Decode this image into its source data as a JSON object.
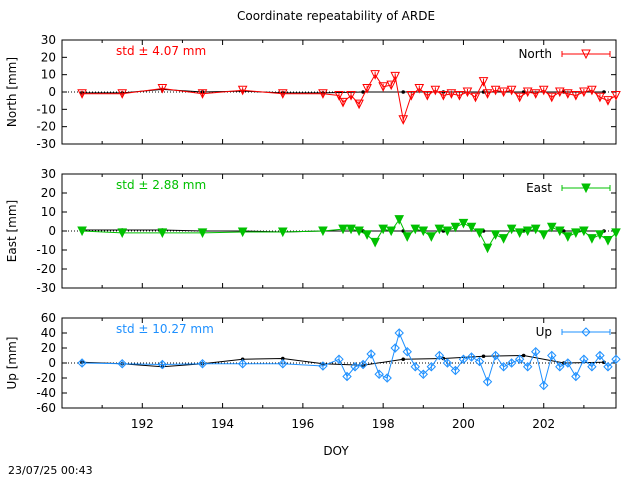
{
  "title": "Coordinate repeatability of ARDE",
  "timestamp": "23/07/25 00:43",
  "x_label": "DOY",
  "x_ticks": [
    "192",
    "194",
    "196",
    "198",
    "200",
    "202"
  ],
  "chart_data": [
    {
      "type": "line",
      "panel": "north",
      "ylabel": "North [mm]",
      "ylim": [
        -30,
        30
      ],
      "yticks": [
        "30",
        "20",
        "10",
        "0",
        "-10",
        "-20",
        "-30"
      ],
      "legend": "North",
      "std_label": "std ± 4.07 mm",
      "color": "#ff0000",
      "marker": "triangle-down-open",
      "series": [
        {
          "name": "North",
          "x": [
            190.5,
            191.5,
            192.5,
            193.5,
            194.5,
            195.5,
            196.5,
            196.9,
            197.0,
            197.2,
            197.4,
            197.6,
            197.8,
            198.0,
            198.2,
            198.3,
            198.5,
            198.7,
            198.9,
            199.1,
            199.3,
            199.5,
            199.7,
            199.9,
            200.1,
            200.3,
            200.5,
            200.6,
            200.8,
            201.0,
            201.2,
            201.4,
            201.6,
            201.8,
            202.0,
            202.2,
            202.4,
            202.6,
            202.8,
            203.0,
            203.2,
            203.4,
            203.6,
            203.8
          ],
          "values": [
            -1,
            -1,
            2,
            -1,
            1,
            -1,
            -1,
            -2,
            -6,
            -2,
            -7,
            2,
            10,
            3,
            4,
            9,
            -16,
            -2,
            2,
            -2,
            1,
            -2,
            -1,
            -2,
            0,
            -3,
            6,
            -1,
            1,
            0,
            1,
            -3,
            0,
            -1,
            1,
            -3,
            0,
            -1,
            -2,
            0,
            1,
            -3,
            -5,
            -2
          ]
        },
        {
          "name": "reference",
          "x": [
            190.5,
            191.5,
            192.5,
            193.5,
            194.5,
            195.5,
            196.5,
            197.5,
            198.5,
            199.5,
            200.5,
            201.5,
            202.5,
            203.5
          ],
          "values": [
            -0.5,
            -0.5,
            1.5,
            0,
            0.5,
            -0.5,
            -0.5,
            0,
            0,
            0,
            0,
            0,
            0,
            0
          ]
        }
      ]
    },
    {
      "type": "line",
      "panel": "east",
      "ylabel": "East [mm]",
      "ylim": [
        -30,
        30
      ],
      "yticks": [
        "30",
        "20",
        "10",
        "0",
        "-10",
        "-20",
        "-30"
      ],
      "legend": "East",
      "std_label": "std ± 2.88 mm",
      "color": "#00c000",
      "marker": "triangle-down-filled",
      "series": [
        {
          "name": "East",
          "x": [
            190.5,
            191.5,
            192.5,
            193.5,
            194.5,
            195.5,
            196.5,
            197.0,
            197.2,
            197.4,
            197.6,
            197.8,
            198.0,
            198.2,
            198.4,
            198.6,
            198.8,
            199.0,
            199.2,
            199.4,
            199.6,
            199.8,
            200.0,
            200.2,
            200.4,
            200.6,
            200.8,
            201.0,
            201.2,
            201.4,
            201.6,
            201.8,
            202.0,
            202.2,
            202.4,
            202.6,
            202.8,
            203.0,
            203.2,
            203.4,
            203.6,
            203.8
          ],
          "values": [
            0,
            -1,
            -1,
            -1,
            -0.5,
            -0.5,
            0,
            1,
            1,
            0,
            -2,
            -6,
            1,
            0,
            6,
            -3,
            1,
            0,
            -3,
            1,
            0,
            2,
            4,
            2,
            -1,
            -9,
            -2,
            -4,
            1,
            -1,
            0,
            1,
            -2,
            2,
            0,
            -3,
            -1,
            0,
            -4,
            -2,
            -5,
            -1
          ]
        },
        {
          "name": "reference",
          "x": [
            190.5,
            191.5,
            192.5,
            193.5,
            194.5,
            195.5,
            196.5,
            197.5,
            198.5,
            199.5,
            200.5,
            201.5,
            202.5,
            203.5
          ],
          "values": [
            0.5,
            0.5,
            0.5,
            0,
            0,
            -0.5,
            0,
            0,
            0,
            0,
            0,
            0,
            0,
            0
          ]
        }
      ]
    },
    {
      "type": "line",
      "panel": "up",
      "ylabel": "Up [mm]",
      "ylim": [
        -60,
        60
      ],
      "yticks": [
        "60",
        "40",
        "20",
        "0",
        "-20",
        "-40",
        "-60"
      ],
      "legend": "Up",
      "std_label": "std ± 10.27 mm",
      "color": "#1e90ff",
      "marker": "diamond-open",
      "series": [
        {
          "name": "Up",
          "x": [
            190.5,
            191.5,
            192.5,
            193.5,
            194.5,
            195.5,
            196.5,
            196.9,
            197.1,
            197.3,
            197.5,
            197.7,
            197.9,
            198.1,
            198.3,
            198.4,
            198.6,
            198.8,
            199.0,
            199.2,
            199.4,
            199.6,
            199.8,
            200.0,
            200.2,
            200.4,
            200.6,
            200.8,
            201.0,
            201.2,
            201.4,
            201.6,
            201.8,
            202.0,
            202.2,
            202.4,
            202.6,
            202.8,
            203.0,
            203.2,
            203.4,
            203.6,
            203.8
          ],
          "values": [
            0,
            -1,
            -2,
            -1,
            -1,
            -1,
            -4,
            5,
            -18,
            -5,
            -2,
            12,
            -15,
            -20,
            20,
            40,
            15,
            -5,
            -15,
            -5,
            10,
            0,
            -10,
            5,
            8,
            2,
            -25,
            10,
            -5,
            0,
            5,
            -5,
            15,
            -30,
            10,
            -5,
            0,
            -18,
            5,
            -5,
            10,
            -5,
            5
          ]
        },
        {
          "name": "reference",
          "x": [
            190.5,
            191.5,
            192.5,
            193.5,
            194.5,
            195.5,
            196.5,
            197.5,
            198.5,
            199.5,
            200.5,
            201.5,
            202.5,
            203.5
          ],
          "values": [
            1,
            -1,
            -5,
            -1,
            5,
            6,
            -1,
            -3,
            5,
            6,
            9,
            10,
            0,
            1
          ]
        }
      ]
    }
  ]
}
